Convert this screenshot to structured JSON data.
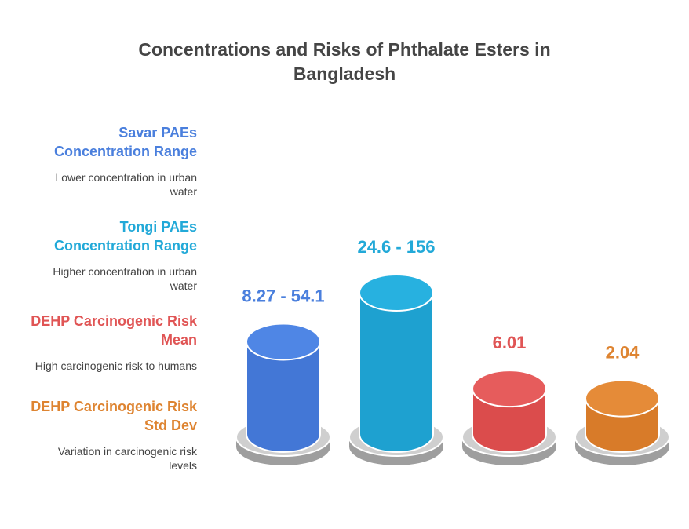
{
  "title_lines": [
    "Concentrations and Risks of Phthalate Esters in",
    "Bangladesh"
  ],
  "legend": [
    {
      "heading_lines": [
        "Savar PAEs",
        "Concentration Range"
      ],
      "desc_lines": [
        "Lower concentration in urban",
        "water"
      ],
      "color": "#4a7fdd"
    },
    {
      "heading_lines": [
        "Tongi PAEs",
        "Concentration Range"
      ],
      "desc_lines": [
        "Higher concentration in urban",
        "water"
      ],
      "color": "#22a9d8"
    },
    {
      "heading_lines": [
        "DEHP Carcinogenic Risk",
        "Mean"
      ],
      "desc_lines": [
        "High carcinogenic risk to humans"
      ],
      "color": "#e05555"
    },
    {
      "heading_lines": [
        "DEHP Carcinogenic Risk",
        "Std Dev"
      ],
      "desc_lines": [
        "Variation in carcinogenic risk",
        "levels"
      ],
      "color": "#de8431"
    }
  ],
  "chart_data": {
    "type": "bar",
    "categories": [
      "Savar PAEs Concentration Range",
      "Tongi PAEs Concentration Range",
      "DEHP Carcinogenic Risk Mean",
      "DEHP Carcinogenic Risk Std Dev"
    ],
    "value_labels": [
      "8.27 - 54.1",
      "24.6 - 156",
      "6.01",
      "2.04"
    ],
    "values": [
      54.1,
      156,
      6.01,
      2.04
    ],
    "colors": [
      "#4a7fdd",
      "#22a9d8",
      "#e05555",
      "#de8431"
    ],
    "side_colors": [
      "#4377d6",
      "#1ea1d0",
      "#db4c4c",
      "#d87b29"
    ],
    "top_colors": [
      "#4f86e5",
      "#27b1e0",
      "#e65c5c",
      "#e58b38"
    ],
    "title": "Concentrations and Risks of Phthalate Esters in Bangladesh"
  }
}
